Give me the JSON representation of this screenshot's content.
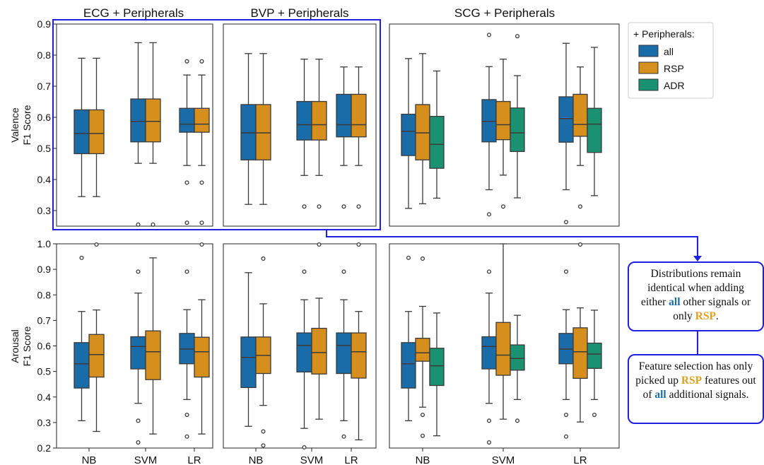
{
  "figure": {
    "columns": [
      "ECG + Peripherals",
      "BVP + Peripherals",
      "SCG + Peripherals"
    ],
    "row_labels": [
      [
        "Valence",
        "F1 Score"
      ],
      [
        "Arousal",
        "F1 Score"
      ]
    ],
    "classifiers": [
      "NB",
      "SVM",
      "LR"
    ],
    "legend": {
      "title": "+ Peripherals:",
      "entries": [
        {
          "label": "all",
          "color": "#1a6ca8"
        },
        {
          "label": "RSP",
          "color": "#d68f1c"
        },
        {
          "label": "ADR",
          "color": "#1a9170"
        }
      ]
    },
    "valence_ticks": [
      "0.3",
      "0.4",
      "0.5",
      "0.6",
      "0.7",
      "0.8",
      "0.9"
    ],
    "arousal_ticks": [
      "0.2",
      "0.3",
      "0.4",
      "0.5",
      "0.6",
      "0.7",
      "0.8",
      "0.9",
      "1.0"
    ]
  },
  "annotations": {
    "note1": {
      "p1": "Distributions remain identical when adding either",
      "all": "all",
      "p2": "other signals or only",
      "rsp": "RSP",
      "p3": "."
    },
    "note2": {
      "p1": "Feature selection has only picked up",
      "rsp": "RSP",
      "p2": "features out of",
      "all": "all",
      "p3": "additional signals."
    }
  },
  "chart_data": [
    {
      "type": "box",
      "panel": "ECG + Peripherals",
      "metric": "Valence F1 Score",
      "ylim": [
        0.25,
        0.9
      ],
      "grid": false,
      "groups": [
        {
          "classifier": "NB",
          "boxes": [
            {
              "series": "all",
              "whislo": 0.345,
              "q1": 0.483,
              "med": 0.548,
              "q3": 0.624,
              "whishi": 0.79,
              "fliers": []
            },
            {
              "series": "RSP",
              "whislo": 0.345,
              "q1": 0.483,
              "med": 0.548,
              "q3": 0.624,
              "whishi": 0.79,
              "fliers": []
            }
          ]
        },
        {
          "classifier": "SVM",
          "boxes": [
            {
              "series": "all",
              "whislo": 0.452,
              "q1": 0.521,
              "med": 0.587,
              "q3": 0.659,
              "whishi": 0.84,
              "fliers": [
                0.255
              ]
            },
            {
              "series": "RSP",
              "whislo": 0.452,
              "q1": 0.521,
              "med": 0.587,
              "q3": 0.659,
              "whishi": 0.84,
              "fliers": [
                0.255
              ]
            }
          ]
        },
        {
          "classifier": "LR",
          "boxes": [
            {
              "series": "all",
              "whislo": 0.445,
              "q1": 0.552,
              "med": 0.578,
              "q3": 0.629,
              "whishi": 0.736,
              "fliers": [
                0.78,
                0.39,
                0.261
              ]
            },
            {
              "series": "RSP",
              "whislo": 0.445,
              "q1": 0.552,
              "med": 0.578,
              "q3": 0.629,
              "whishi": 0.736,
              "fliers": [
                0.78,
                0.39,
                0.261
              ]
            }
          ]
        }
      ]
    },
    {
      "type": "box",
      "panel": "BVP + Peripherals",
      "metric": "Valence F1 Score",
      "ylim": [
        0.25,
        0.9
      ],
      "grid": false,
      "groups": [
        {
          "classifier": "NB",
          "boxes": [
            {
              "series": "all",
              "whislo": 0.32,
              "q1": 0.463,
              "med": 0.55,
              "q3": 0.641,
              "whishi": 0.805,
              "fliers": []
            },
            {
              "series": "RSP",
              "whislo": 0.32,
              "q1": 0.463,
              "med": 0.55,
              "q3": 0.641,
              "whishi": 0.805,
              "fliers": []
            }
          ]
        },
        {
          "classifier": "SVM",
          "boxes": [
            {
              "series": "all",
              "whislo": 0.413,
              "q1": 0.527,
              "med": 0.576,
              "q3": 0.651,
              "whishi": 0.787,
              "fliers": [
                0.313
              ]
            },
            {
              "series": "RSP",
              "whislo": 0.413,
              "q1": 0.527,
              "med": 0.576,
              "q3": 0.651,
              "whishi": 0.787,
              "fliers": [
                0.313
              ]
            }
          ]
        },
        {
          "classifier": "LR",
          "boxes": [
            {
              "series": "all",
              "whislo": 0.445,
              "q1": 0.537,
              "med": 0.576,
              "q3": 0.674,
              "whishi": 0.762,
              "fliers": [
                0.313
              ]
            },
            {
              "series": "RSP",
              "whislo": 0.445,
              "q1": 0.537,
              "med": 0.576,
              "q3": 0.674,
              "whishi": 0.762,
              "fliers": [
                0.313
              ]
            }
          ]
        }
      ]
    },
    {
      "type": "box",
      "panel": "SCG + Peripherals",
      "metric": "Valence F1 Score",
      "ylim": [
        0.25,
        0.9
      ],
      "grid": false,
      "groups": [
        {
          "classifier": "NB",
          "boxes": [
            {
              "series": "all",
              "whislo": 0.307,
              "q1": 0.477,
              "med": 0.555,
              "q3": 0.61,
              "whishi": 0.789,
              "fliers": []
            },
            {
              "series": "RSP",
              "whislo": 0.322,
              "q1": 0.463,
              "med": 0.55,
              "q3": 0.641,
              "whishi": 0.805,
              "fliers": []
            },
            {
              "series": "ADR",
              "whislo": 0.34,
              "q1": 0.436,
              "med": 0.513,
              "q3": 0.603,
              "whishi": 0.749,
              "fliers": []
            }
          ]
        },
        {
          "classifier": "SVM",
          "boxes": [
            {
              "series": "all",
              "whislo": 0.367,
              "q1": 0.521,
              "med": 0.587,
              "q3": 0.657,
              "whishi": 0.763,
              "fliers": [
                0.865,
                0.288
              ]
            },
            {
              "series": "RSP",
              "whislo": 0.414,
              "q1": 0.528,
              "med": 0.576,
              "q3": 0.651,
              "whishi": 0.787,
              "fliers": [
                0.313
              ]
            },
            {
              "series": "ADR",
              "whislo": 0.341,
              "q1": 0.49,
              "med": 0.55,
              "q3": 0.63,
              "whishi": 0.734,
              "fliers": [
                0.861
              ]
            }
          ]
        },
        {
          "classifier": "LR",
          "boxes": [
            {
              "series": "all",
              "whislo": 0.367,
              "q1": 0.52,
              "med": 0.596,
              "q3": 0.666,
              "whishi": 0.838,
              "fliers": [
                0.263
              ]
            },
            {
              "series": "RSP",
              "whislo": 0.445,
              "q1": 0.539,
              "med": 0.577,
              "q3": 0.674,
              "whishi": 0.762,
              "fliers": [
                0.313
              ]
            },
            {
              "series": "ADR",
              "whislo": 0.348,
              "q1": 0.487,
              "med": 0.578,
              "q3": 0.629,
              "whishi": 0.825,
              "fliers": []
            }
          ]
        }
      ]
    },
    {
      "type": "box",
      "panel": "ECG + Peripherals",
      "metric": "Arousal F1 Score",
      "ylim": [
        0.2,
        1.0
      ],
      "grid": false,
      "groups": [
        {
          "classifier": "NB",
          "boxes": [
            {
              "series": "all",
              "whislo": 0.307,
              "q1": 0.435,
              "med": 0.53,
              "q3": 0.613,
              "whishi": 0.735,
              "fliers": [
                0.945
              ]
            },
            {
              "series": "RSP",
              "whislo": 0.265,
              "q1": 0.478,
              "med": 0.566,
              "q3": 0.645,
              "whishi": 0.741,
              "fliers": [
                1.0
              ]
            }
          ]
        },
        {
          "classifier": "SVM",
          "boxes": [
            {
              "series": "all",
              "whislo": 0.375,
              "q1": 0.51,
              "med": 0.598,
              "q3": 0.636,
              "whishi": 0.807,
              "fliers": [
                0.891,
                0.307,
                0.222
              ]
            },
            {
              "series": "RSP",
              "whislo": 0.255,
              "q1": 0.468,
              "med": 0.577,
              "q3": 0.659,
              "whishi": 0.945,
              "fliers": []
            }
          ]
        },
        {
          "classifier": "LR",
          "boxes": [
            {
              "series": "all",
              "whislo": 0.39,
              "q1": 0.53,
              "med": 0.588,
              "q3": 0.649,
              "whishi": 0.742,
              "fliers": [
                0.891,
                0.33,
                0.245
              ]
            },
            {
              "series": "RSP",
              "whislo": 0.255,
              "q1": 0.478,
              "med": 0.577,
              "q3": 0.634,
              "whishi": 0.781,
              "fliers": [
                1.0
              ]
            }
          ]
        }
      ]
    },
    {
      "type": "box",
      "panel": "BVP + Peripherals",
      "metric": "Arousal F1 Score",
      "ylim": [
        0.2,
        1.0
      ],
      "grid": false,
      "groups": [
        {
          "classifier": "NB",
          "boxes": [
            {
              "series": "all",
              "whislo": 0.285,
              "q1": 0.437,
              "med": 0.555,
              "q3": 0.635,
              "whishi": 0.887,
              "fliers": []
            },
            {
              "series": "RSP",
              "whislo": 0.367,
              "q1": 0.492,
              "med": 0.563,
              "q3": 0.635,
              "whishi": 0.765,
              "fliers": [
                0.942,
                0.265,
                0.21
              ]
            }
          ]
        },
        {
          "classifier": "SVM",
          "boxes": [
            {
              "series": "all",
              "whislo": 0.277,
              "q1": 0.498,
              "med": 0.602,
              "q3": 0.651,
              "whishi": 0.781,
              "fliers": [
                0.891,
                0.202
              ]
            },
            {
              "series": "RSP",
              "whislo": 0.313,
              "q1": 0.49,
              "med": 0.574,
              "q3": 0.669,
              "whishi": 0.787,
              "fliers": [
                1.0
              ]
            }
          ]
        },
        {
          "classifier": "LR",
          "boxes": [
            {
              "series": "all",
              "whislo": 0.307,
              "q1": 0.492,
              "med": 0.602,
              "q3": 0.651,
              "whishi": 0.781,
              "fliers": [
                0.891,
                0.245
              ]
            },
            {
              "series": "RSP",
              "whislo": 0.232,
              "q1": 0.474,
              "med": 0.577,
              "q3": 0.651,
              "whishi": 0.735,
              "fliers": [
                1.0
              ]
            }
          ]
        }
      ]
    },
    {
      "type": "box",
      "panel": "SCG + Peripherals",
      "metric": "Arousal F1 Score",
      "ylim": [
        0.2,
        1.0
      ],
      "grid": false,
      "groups": [
        {
          "classifier": "NB",
          "boxes": [
            {
              "series": "all",
              "whislo": 0.307,
              "q1": 0.435,
              "med": 0.53,
              "q3": 0.613,
              "whishi": 0.735,
              "fliers": [
                0.945
              ]
            },
            {
              "series": "RSP",
              "whislo": 0.36,
              "q1": 0.54,
              "med": 0.573,
              "q3": 0.63,
              "whishi": 0.755,
              "fliers": [
                0.942,
                0.33,
                0.248
              ]
            },
            {
              "series": "ADR",
              "whislo": 0.248,
              "q1": 0.445,
              "med": 0.522,
              "q3": 0.591,
              "whishi": 0.729,
              "fliers": []
            }
          ]
        },
        {
          "classifier": "SVM",
          "boxes": [
            {
              "series": "all",
              "whislo": 0.375,
              "q1": 0.51,
              "med": 0.598,
              "q3": 0.636,
              "whishi": 0.807,
              "fliers": [
                0.891,
                0.307,
                0.222
              ]
            },
            {
              "series": "RSP",
              "whislo": 0.313,
              "q1": 0.485,
              "med": 0.564,
              "q3": 0.692,
              "whishi": 1.0,
              "fliers": []
            },
            {
              "series": "ADR",
              "whislo": 0.39,
              "q1": 0.505,
              "med": 0.551,
              "q3": 0.604,
              "whishi": 0.72,
              "fliers": [
                0.307
              ]
            }
          ]
        },
        {
          "classifier": "LR",
          "boxes": [
            {
              "series": "all",
              "whislo": 0.39,
              "q1": 0.53,
              "med": 0.588,
              "q3": 0.649,
              "whishi": 0.742,
              "fliers": [
                0.891,
                0.33,
                0.245
              ]
            },
            {
              "series": "RSP",
              "whislo": 0.302,
              "q1": 0.473,
              "med": 0.577,
              "q3": 0.671,
              "whishi": 0.749,
              "fliers": [
                1.0
              ]
            },
            {
              "series": "ADR",
              "whislo": 0.39,
              "q1": 0.512,
              "med": 0.568,
              "q3": 0.611,
              "whishi": 0.74,
              "fliers": [
                0.33
              ]
            }
          ]
        }
      ]
    }
  ]
}
